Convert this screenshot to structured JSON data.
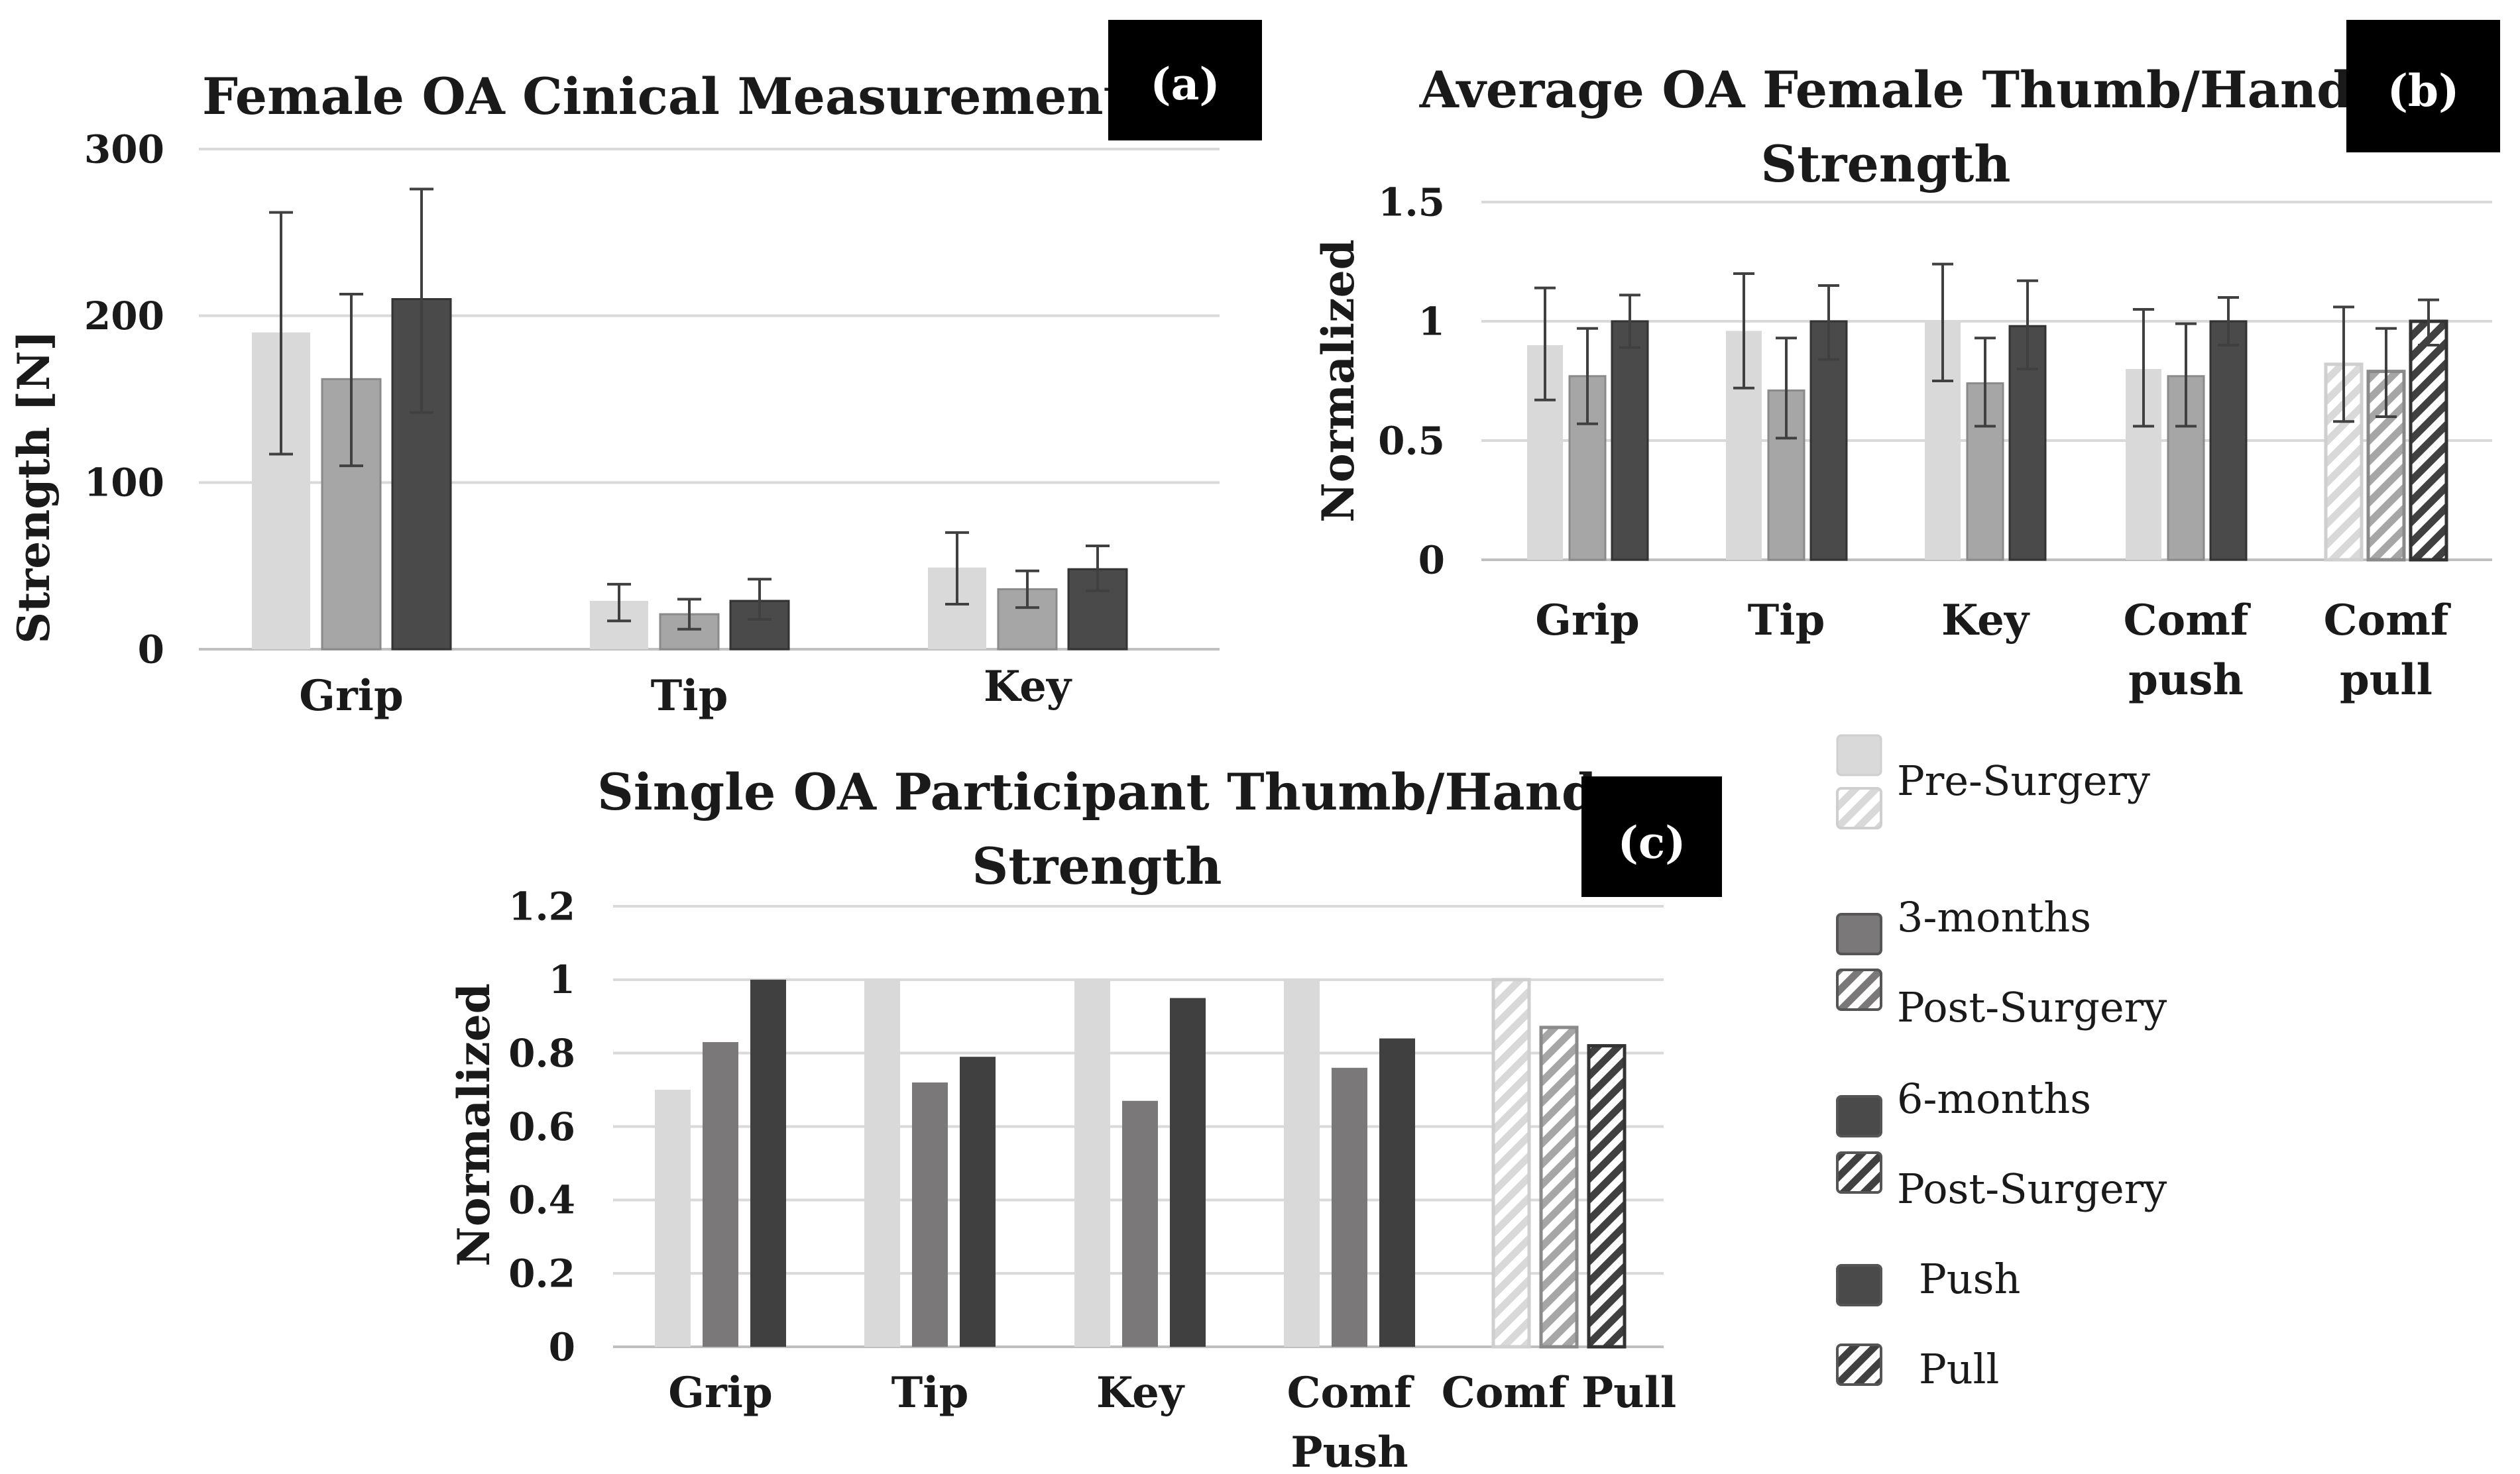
{
  "colors": {
    "pre": "#d9d9d9",
    "m3": "#a6a6a6",
    "m6": "#4a4a4a",
    "m3c": "#7a7878",
    "m6c": "#404040",
    "err": "#404040",
    "grid": "#d9d9d9",
    "badge": "#000000"
  },
  "legend": {
    "items": [
      {
        "label": "Pre-Surgery",
        "pattern": "solid",
        "color": "pre"
      },
      {
        "label": "",
        "pattern": "hatch",
        "color": "pre"
      },
      {
        "label": "3-months",
        "pattern": "solid",
        "color": "m3c"
      },
      {
        "label": "Post-Surgery",
        "pattern": "hatch",
        "color": "m3"
      },
      {
        "label": "6-months",
        "pattern": "solid",
        "color": "m6"
      },
      {
        "label": "Post-Surgery",
        "pattern": "hatch",
        "color": "m6"
      },
      {
        "label": "Push",
        "pattern": "solid",
        "color": "m6"
      },
      {
        "label": "Pull",
        "pattern": "hatch",
        "color": "m6"
      }
    ]
  },
  "chart_data": [
    {
      "id": "a",
      "badge": "(a)",
      "type": "bar",
      "title": "Female OA Cinical Measurements",
      "ylabel": "Strength [N]",
      "xlabel": "",
      "ylim": [
        0,
        300
      ],
      "yticks": [
        "0",
        "100",
        "200",
        "300"
      ],
      "categories": [
        "Grip",
        "Tip",
        "Key"
      ],
      "series": [
        {
          "name": "Pre-Surgery",
          "values": [
            190,
            29,
            49
          ],
          "err_low": [
            117,
            17,
            27
          ],
          "err_high": [
            262,
            39,
            70
          ]
        },
        {
          "name": "3-months Post-Surgery",
          "values": [
            162,
            21,
            36
          ],
          "err_low": [
            110,
            12,
            25
          ],
          "err_high": [
            213,
            30,
            47
          ]
        },
        {
          "name": "6-months Post-Surgery",
          "values": [
            210,
            29,
            48
          ],
          "err_low": [
            142,
            18,
            35
          ],
          "err_high": [
            276,
            42,
            62
          ]
        }
      ]
    },
    {
      "id": "b",
      "badge": "(b)",
      "type": "bar",
      "title": "Average OA Female Thumb/Hand Strength",
      "title_lines": [
        "Average OA Female Thumb/Hand",
        "Strength"
      ],
      "ylabel": "Normalized",
      "xlabel": "",
      "ylim": [
        0,
        1.5
      ],
      "yticks": [
        "0",
        "0.5",
        "1",
        "1.5"
      ],
      "categories": [
        "Grip",
        "Tip",
        "Key",
        "Comf push",
        "Comf pull"
      ],
      "category_lines": [
        [
          "Grip"
        ],
        [
          "Tip"
        ],
        [
          "Key"
        ],
        [
          "Comf",
          "push"
        ],
        [
          "Comf",
          "pull"
        ]
      ],
      "series": [
        {
          "name": "Pre-Surgery",
          "values": [
            0.9,
            0.96,
            1.0,
            0.8,
            0.82
          ],
          "err_low": [
            0.67,
            0.72,
            0.75,
            0.56,
            0.58
          ],
          "err_high": [
            1.14,
            1.2,
            1.24,
            1.05,
            1.06
          ]
        },
        {
          "name": "3-months Post-Surgery",
          "values": [
            0.77,
            0.71,
            0.74,
            0.77,
            0.79
          ],
          "err_low": [
            0.57,
            0.51,
            0.56,
            0.56,
            0.6
          ],
          "err_high": [
            0.97,
            0.93,
            0.93,
            0.99,
            0.97
          ]
        },
        {
          "name": "6-months Post-Surgery",
          "values": [
            1.0,
            1.0,
            0.98,
            1.0,
            1.0
          ],
          "err_low": [
            0.89,
            0.84,
            0.8,
            0.9,
            0.9
          ],
          "err_high": [
            1.11,
            1.15,
            1.17,
            1.1,
            1.09
          ]
        }
      ]
    },
    {
      "id": "c",
      "badge": "(c)",
      "type": "bar",
      "title": "Single OA Participant Thumb/Hand Strength",
      "title_lines": [
        "Single OA Participant Thumb/Hand",
        "Strength"
      ],
      "ylabel": "Normalized",
      "xlabel": "",
      "ylim": [
        0,
        1.2
      ],
      "yticks": [
        "0",
        "0.2",
        "0.4",
        "0.6",
        "0.8",
        "1",
        "1.2"
      ],
      "categories": [
        "Grip",
        "Tip",
        "Key",
        "Comf Push",
        "Comf Pull"
      ],
      "category_lines": [
        [
          "Grip"
        ],
        [
          "Tip"
        ],
        [
          "Key"
        ],
        [
          "Comf",
          "Push"
        ],
        [
          "Comf Pull"
        ]
      ],
      "series": [
        {
          "name": "Pre-Surgery",
          "values": [
            0.7,
            1.0,
            1.0,
            1.0,
            1.0
          ]
        },
        {
          "name": "3-months Post-Surgery",
          "values": [
            0.83,
            0.72,
            0.67,
            0.76,
            0.87
          ]
        },
        {
          "name": "6-months Post-Surgery",
          "values": [
            1.0,
            0.79,
            0.95,
            0.84,
            0.82
          ]
        }
      ]
    }
  ]
}
